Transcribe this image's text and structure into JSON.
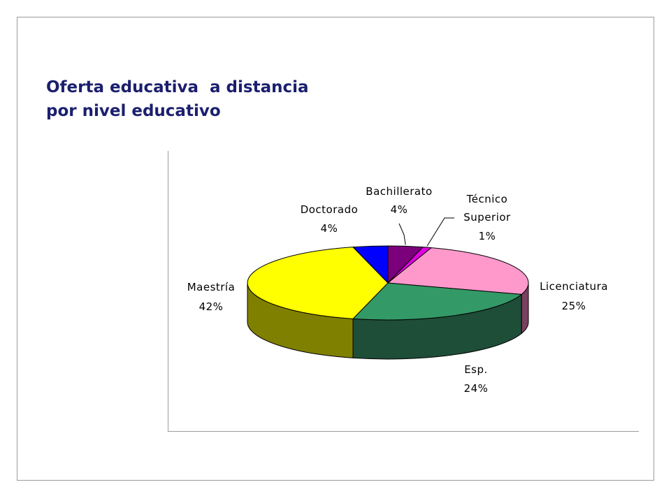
{
  "slide": {
    "title_line1": "Oferta educativa  a distancia",
    "title_line2": "por nivel educativo"
  },
  "colors": {
    "title": "#1b1f6e",
    "axis": "#9a9a9a"
  },
  "chart_data": {
    "type": "pie",
    "style": "3d",
    "title": "Oferta educativa a distancia por nivel educativo",
    "slices": [
      {
        "key": "bachillerato",
        "label": "Bachillerato",
        "value": 4,
        "value_label": "4%",
        "color": "#7b007b",
        "side_color": "#4a004a"
      },
      {
        "key": "tecnico",
        "label_line1": "Técnico",
        "label_line2": "Superior",
        "value": 1,
        "value_label": "1%",
        "color": "#e000e0",
        "side_color": "#880088"
      },
      {
        "key": "licenciatura",
        "label": "Licenciatura",
        "value": 25,
        "value_label": "25%",
        "color": "#ff99cc",
        "side_color": "#7a4060"
      },
      {
        "key": "esp",
        "label": "Esp.",
        "value": 24,
        "value_label": "24%",
        "color": "#339966",
        "side_color": "#1e4d38"
      },
      {
        "key": "maestria",
        "label": "Maestría",
        "value": 42,
        "value_label": "42%",
        "color": "#ffff00",
        "side_color": "#808000"
      },
      {
        "key": "doctorado",
        "label": "Doctorado",
        "value": 4,
        "value_label": "4%",
        "color": "#0000ff",
        "side_color": "#000080"
      }
    ]
  }
}
